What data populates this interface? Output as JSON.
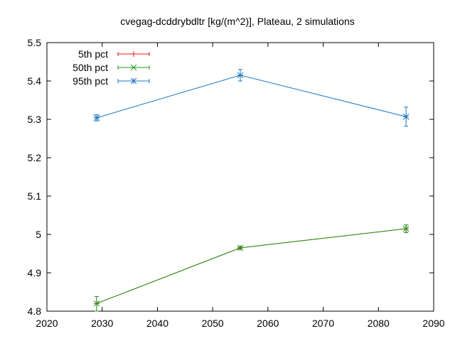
{
  "chart_data": {
    "type": "line",
    "title": "cvegag-dcddrybdltr [kg/(m^2)], Plateau, 2 simulations",
    "xlabel": "",
    "ylabel": "",
    "xlim": [
      2020,
      2090
    ],
    "ylim": [
      4.8,
      5.5
    ],
    "x_ticks": [
      2020,
      2030,
      2040,
      2050,
      2060,
      2070,
      2080,
      2090
    ],
    "y_ticks": [
      4.8,
      4.9,
      5,
      5.1,
      5.2,
      5.3,
      5.4,
      5.5
    ],
    "x_tick_labels": [
      "2020",
      "2030",
      "2040",
      "2050",
      "2060",
      "2070",
      "2080",
      "2090"
    ],
    "y_tick_labels": [
      "4.8",
      "4.9",
      "5",
      "5.1",
      "5.2",
      "5.3",
      "5.4",
      "5.5"
    ],
    "grid": false,
    "legend_position": "top-left",
    "series": [
      {
        "name": "5th pct",
        "color": "#e41a1c",
        "marker": "plus",
        "x": [
          2029,
          2055,
          2085
        ],
        "y": [
          4.82,
          4.965,
          5.015
        ],
        "err_low": [
          4.8,
          4.962,
          5.005
        ],
        "err_high": [
          4.838,
          4.968,
          5.025
        ]
      },
      {
        "name": "50th pct",
        "color": "#1a9a1a",
        "marker": "x",
        "x": [
          2029,
          2055,
          2085
        ],
        "y": [
          4.82,
          4.965,
          5.015
        ],
        "err_low": [
          4.8,
          4.962,
          5.005
        ],
        "err_high": [
          4.838,
          4.968,
          5.025
        ]
      },
      {
        "name": "95th pct",
        "color": "#1a78c2",
        "marker": "star",
        "x": [
          2029,
          2055,
          2085
        ],
        "y": [
          5.304,
          5.415,
          5.307
        ],
        "err_low": [
          5.296,
          5.4,
          5.282
        ],
        "err_high": [
          5.312,
          5.43,
          5.332
        ]
      }
    ]
  }
}
